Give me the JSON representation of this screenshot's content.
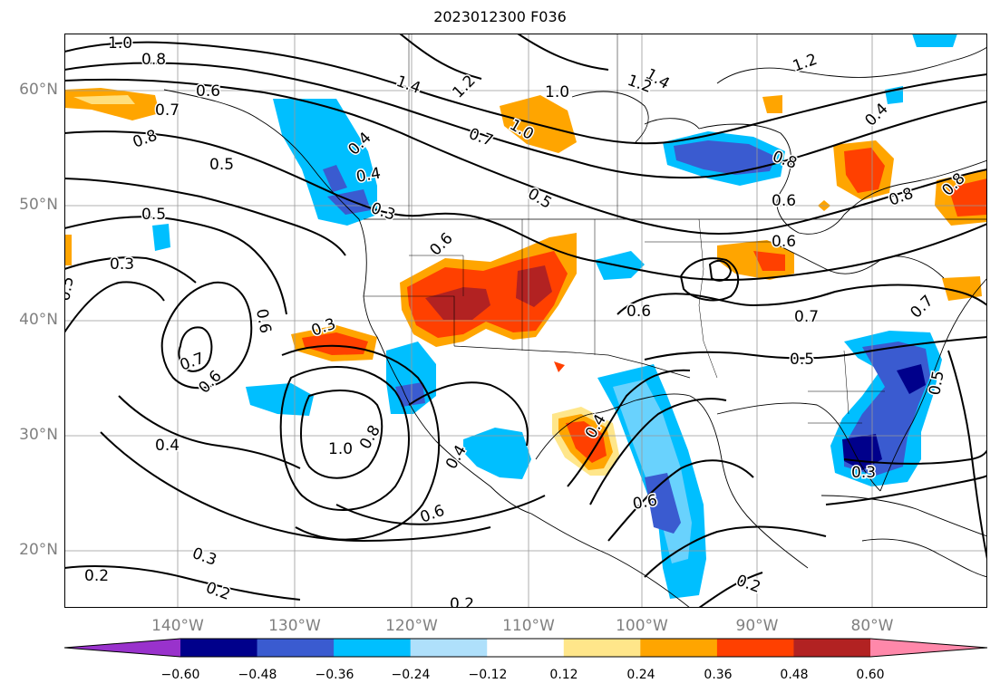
{
  "title": "2023012300 F036",
  "lat_labels": [
    "60°N",
    "50°N",
    "40°N",
    "30°N",
    "20°N"
  ],
  "lon_labels": [
    "140°W",
    "130°W",
    "120°W",
    "110°W",
    "100°W",
    "90°W",
    "80°W"
  ],
  "colorbar": {
    "tick_labels": [
      "−0.60",
      "−0.48",
      "−0.36",
      "−0.24",
      "−0.12",
      "0.12",
      "0.24",
      "0.36",
      "0.48",
      "0.60"
    ],
    "colors": [
      "#9932cc",
      "#00008b",
      "#3a5bd0",
      "#00bfff",
      "#afe0fb",
      "#ffffff",
      "#ffe68a",
      "#ffa500",
      "#ff4000",
      "#b22222",
      "#ff88aa"
    ]
  },
  "contour_labels": [
    "1.0",
    "0.8",
    "0.7",
    "0.8",
    "0.6",
    "1.4",
    "1.2",
    "1.0",
    "1.0",
    "0.7",
    "1.4",
    "1.2",
    "1.2",
    "0.4",
    "0.4",
    "0.4",
    "0.3",
    "0.5",
    "0.5",
    "0.6",
    "0.5",
    "0.3",
    "0.5",
    "0.6",
    "0.8",
    "0.8",
    "0.8",
    "0.6",
    "0.6",
    "0.7",
    "0.6",
    "0.7",
    "0.5",
    "0.3",
    "0.7",
    "0.6",
    "0.4",
    "1.0",
    "0.8",
    "0.4",
    "0.6",
    "0.3",
    "0.2",
    "0.2",
    "0.2",
    "0.2",
    "0.6",
    "0.4",
    "0.3",
    "0.5"
  ]
}
